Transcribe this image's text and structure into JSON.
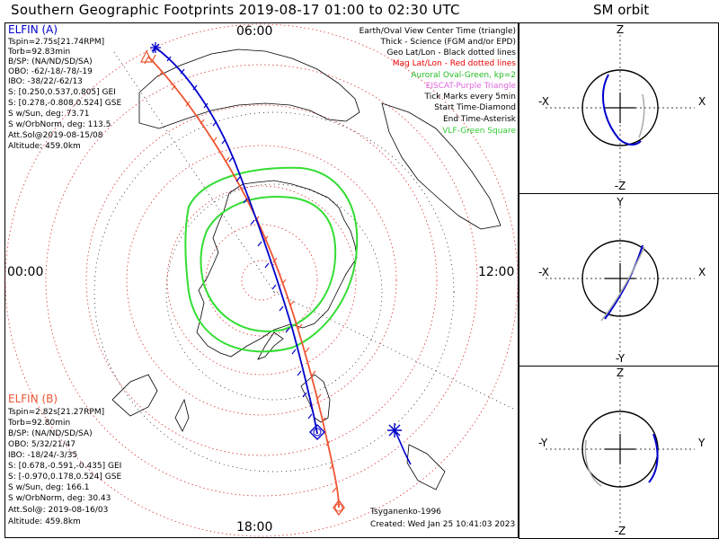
{
  "title": "Southern Geographic Footprints 2019-08-17 01:00 to 02:30 UTC",
  "sm_title": "SM orbit",
  "time_labels": {
    "top": "06:00",
    "left": "00:00",
    "right": "12:00",
    "bottom": "18:00"
  },
  "colors": {
    "elfin_a": "#0000cc",
    "elfin_b": "#ee5533",
    "oval": "#33dd33",
    "grid": "#dd3333",
    "eiscat": "#dd66dd",
    "vlf": "#33cc33"
  },
  "elfin_a": {
    "name": "ELFIN (A)",
    "lines": [
      "Tspin=2.75s[21.74RPM]",
      "Torb=92.83min",
      "B/SP: (NA/ND/SD/SA)",
      "OBO: -62/-18/-78/-19",
      "IBO: -38/22/-62/13",
      "S: [0.250,0.537,0.805] GEI",
      "S: [0.278,-0.808,0.524] GSE",
      "S w/Sun, deg: 73.71",
      "S w/OrbNorm, deg: 113.5",
      "Att.Sol@2019-08-15/08",
      "Altitude: 459.0km"
    ]
  },
  "elfin_b": {
    "name": "ELFIN (B)",
    "lines": [
      "Tspin=2.82s[21.27RPM]",
      "Torb=92.80min",
      "B/SP: (NA/ND/SD/SA)",
      "OBO: 5/32/21/47",
      "IBO: -18/24/-3/35",
      "S: [0.678,-0.591,-0.435] GEI",
      "S: [-0.970,0.178,0.524] GSE",
      "S w/Sun, deg: 166.1",
      "S w/OrbNorm, deg: 30.43",
      "Att.Sol@: 2019-08-16/03",
      "Altitude: 459.8km"
    ]
  },
  "legend": [
    {
      "text": "Earth/Oval View Center Time (triangle)",
      "color": "#000000"
    },
    {
      "text": "Thick - Science (FGM and/or EPD)",
      "color": "#000000"
    },
    {
      "text": "Geo Lat/Lon - Black dotted lines",
      "color": "#000000"
    },
    {
      "text": "Mag Lat/Lon - Red dotted lines",
      "color": "#ee0000"
    },
    {
      "text": "Auroral Oval-Green, kp=2",
      "color": "#22bb22"
    },
    {
      "text": "EISCAT-Purple Triangle",
      "color": "#dd66dd"
    },
    {
      "text": "Tick Marks every 5min",
      "color": "#000000"
    },
    {
      "text": "Start Time-Diamond",
      "color": "#000000"
    },
    {
      "text": "End Time-Asterisk",
      "color": "#000000"
    },
    {
      "text": "VLF-Green Square",
      "color": "#33cc33"
    }
  ],
  "credits": {
    "model": "Tsyganenko-1996",
    "created": "Created: Wed Jan 25 10:41:03 2023"
  },
  "sm_panels": [
    {
      "top": "Z",
      "bottom": "-Z",
      "left": "-X",
      "right": "X"
    },
    {
      "top": "Y",
      "bottom": "-Y",
      "left": "-X",
      "right": "X"
    },
    {
      "top": "Z",
      "bottom": "-Z",
      "left": "-Y",
      "right": "Y"
    }
  ]
}
